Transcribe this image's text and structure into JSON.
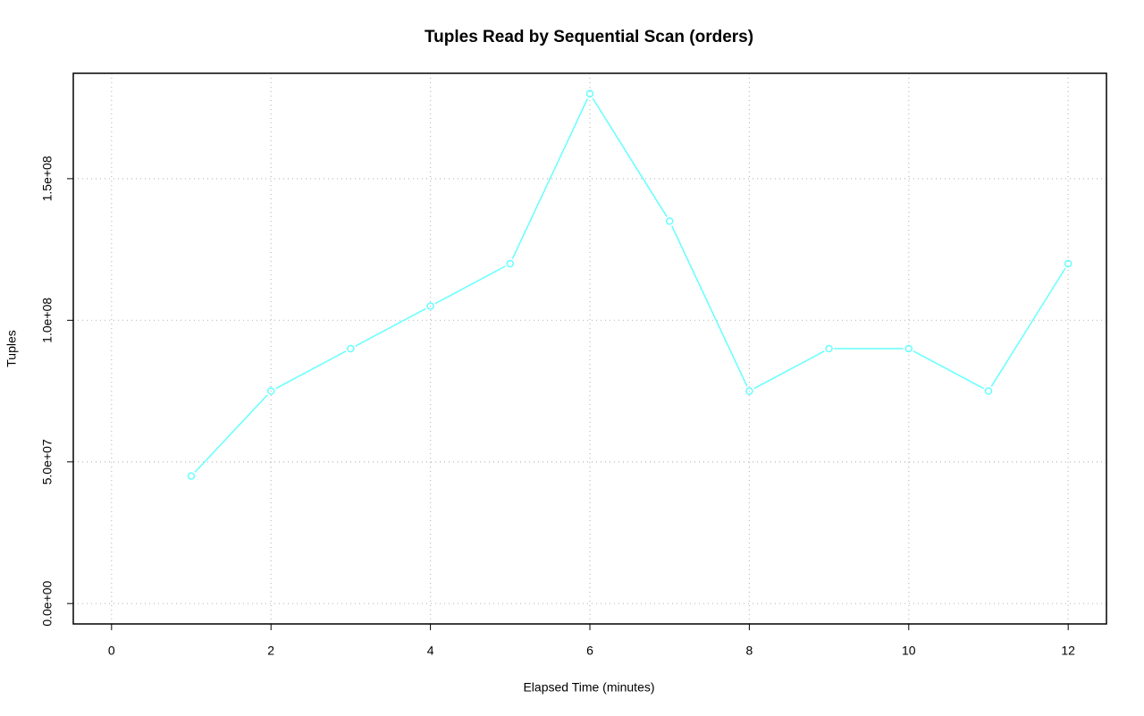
{
  "chart_data": {
    "type": "line",
    "title": "Tuples Read by Sequential Scan (orders)",
    "x_label": "Elapsed Time (minutes)",
    "y_label": "Tuples",
    "x": [
      1,
      2,
      3,
      4,
      5,
      6,
      7,
      8,
      9,
      10,
      11,
      12
    ],
    "series": [
      {
        "name": "orders",
        "color": "#66ffff",
        "values": [
          45000000,
          75000000,
          90000000,
          105000000,
          120000000,
          180000000,
          135000000,
          75000000,
          90000000,
          90000000,
          75000000,
          120000000
        ]
      }
    ],
    "xlim": [
      -0.48,
      12.48
    ],
    "xticks": [
      0,
      2,
      4,
      6,
      8,
      10,
      12
    ],
    "ylim": [
      -7200000,
      187200000
    ],
    "yticks": [
      {
        "value": 0,
        "label": "0.0e+00"
      },
      {
        "value": 50000000,
        "label": "5.0e+07"
      },
      {
        "value": 100000000,
        "label": "1.0e+08"
      },
      {
        "value": 150000000,
        "label": "1.5e+08"
      }
    ],
    "grid": true
  }
}
